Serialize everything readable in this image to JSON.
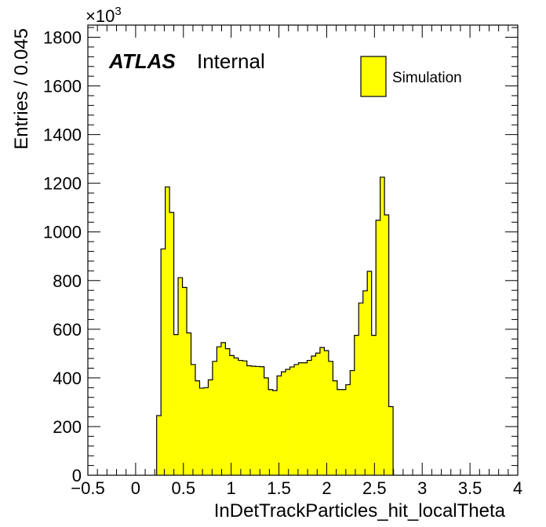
{
  "chart_data": {
    "type": "bar",
    "style": "histogram-step-filled",
    "xlabel": "InDetTrackParticles_hit_localTheta",
    "ylabel": "Entries / 0.045",
    "y_multiplier": "×10",
    "y_multiplier_exponent": "3",
    "xlim": [
      -0.5,
      4.0
    ],
    "ylim": [
      0,
      1850
    ],
    "x_ticks": [
      -0.5,
      0,
      0.5,
      1,
      1.5,
      2,
      2.5,
      3,
      3.5,
      4
    ],
    "x_tick_labels": [
      "−0.5",
      "0",
      "0.5",
      "1",
      "1.5",
      "2",
      "2.5",
      "3",
      "3.5",
      "4"
    ],
    "y_ticks": [
      0,
      200,
      400,
      600,
      800,
      1000,
      1200,
      1400,
      1600,
      1800
    ],
    "y_tick_labels": [
      "0",
      "200",
      "400",
      "600",
      "800",
      "1000",
      "1200",
      "1400",
      "1600",
      "1800"
    ],
    "bin_width": 0.045,
    "bin_start": 0.22,
    "fill_color": "#ffff00",
    "line_color": "#000000",
    "legend_position": "top-right",
    "series": [
      {
        "name": "Simulation",
        "values": [
          245,
          930,
          1185,
          1080,
          578,
          812,
          772,
          585,
          455,
          388,
          358,
          360,
          392,
          468,
          528,
          545,
          520,
          492,
          482,
          472,
          470,
          450,
          448,
          447,
          446,
          400,
          352,
          348,
          408,
          425,
          435,
          445,
          455,
          462,
          462,
          472,
          490,
          502,
          525,
          512,
          468,
          388,
          352,
          352,
          372,
          430,
          575,
          708,
          758,
          838,
          575,
          1048,
          1225,
          1070,
          282
        ]
      }
    ]
  },
  "labels": {
    "atlas": "ATLAS",
    "internal": "Internal"
  }
}
